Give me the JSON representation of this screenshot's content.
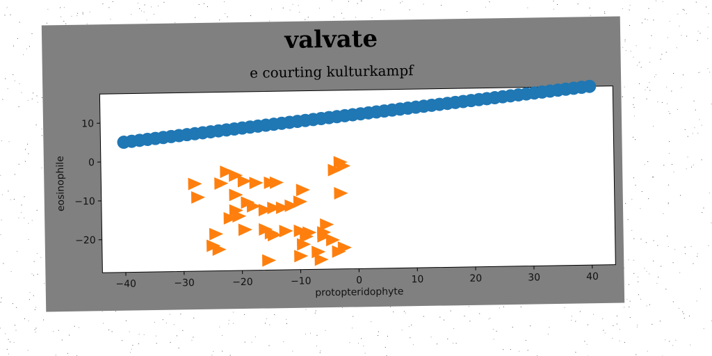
{
  "chart_data": {
    "type": "scatter",
    "title": "valvate",
    "subtitle": "e courting kulturkampf",
    "xlabel": "protopteridophyte",
    "ylabel": "eosinophile",
    "xlim": [
      -44,
      44
    ],
    "ylim": [
      -28.5,
      17.5
    ],
    "xticks": [
      -40,
      -30,
      -20,
      -10,
      0,
      10,
      20,
      30,
      40
    ],
    "yticks": [
      -20,
      -10,
      0,
      10
    ],
    "xtick_labels": [
      "−40",
      "−30",
      "−20",
      "−10",
      "0",
      "10",
      "20",
      "30",
      "40"
    ],
    "ytick_labels": [
      "−20",
      "−10",
      "0",
      "10"
    ],
    "grid": false,
    "series": [
      {
        "marker": "circle",
        "color": "#1f77b4",
        "x_range": [
          -40,
          40
        ],
        "y_range": [
          5,
          17.5
        ],
        "n_points": 60
      },
      {
        "marker": "triangle-right",
        "color": "#ff7f0e",
        "points": [
          [
            -28,
            -6
          ],
          [
            -27.5,
            -9.5
          ],
          [
            -22.5,
            -3
          ],
          [
            -23.5,
            -6
          ],
          [
            -21,
            -4
          ],
          [
            -19.5,
            -5.5
          ],
          [
            -17.5,
            -6
          ],
          [
            -15,
            -6
          ],
          [
            -14,
            -6
          ],
          [
            -21,
            -9
          ],
          [
            -19,
            -11
          ],
          [
            -18,
            -12
          ],
          [
            -22,
            -15
          ],
          [
            -20.5,
            -14.5
          ],
          [
            -21,
            -13
          ],
          [
            -16,
            -13
          ],
          [
            -14.5,
            -12.5
          ],
          [
            -13,
            -12.5
          ],
          [
            -11.5,
            -12
          ],
          [
            -10,
            -11
          ],
          [
            -9.5,
            -8
          ],
          [
            -3,
            -9
          ],
          [
            -4,
            -3
          ],
          [
            -3,
            -1
          ],
          [
            -2.5,
            -2
          ],
          [
            -24.5,
            -19
          ],
          [
            -25,
            -22
          ],
          [
            -24,
            -23
          ],
          [
            -19.5,
            -18
          ],
          [
            -16,
            -18
          ],
          [
            -15,
            -19
          ],
          [
            -14.5,
            -19.5
          ],
          [
            -12.5,
            -18.5
          ],
          [
            -10,
            -18.5
          ],
          [
            -9,
            -20
          ],
          [
            -8.5,
            -19
          ],
          [
            -6,
            -19
          ],
          [
            -5.5,
            -17
          ],
          [
            -9.5,
            -22
          ],
          [
            -10,
            -25
          ],
          [
            -7,
            -24
          ],
          [
            -6,
            -20
          ],
          [
            -4.5,
            -21
          ],
          [
            -3.5,
            -24
          ],
          [
            -2.5,
            -23
          ],
          [
            -6.5,
            -26
          ],
          [
            -15.5,
            -26
          ]
        ]
      }
    ]
  }
}
